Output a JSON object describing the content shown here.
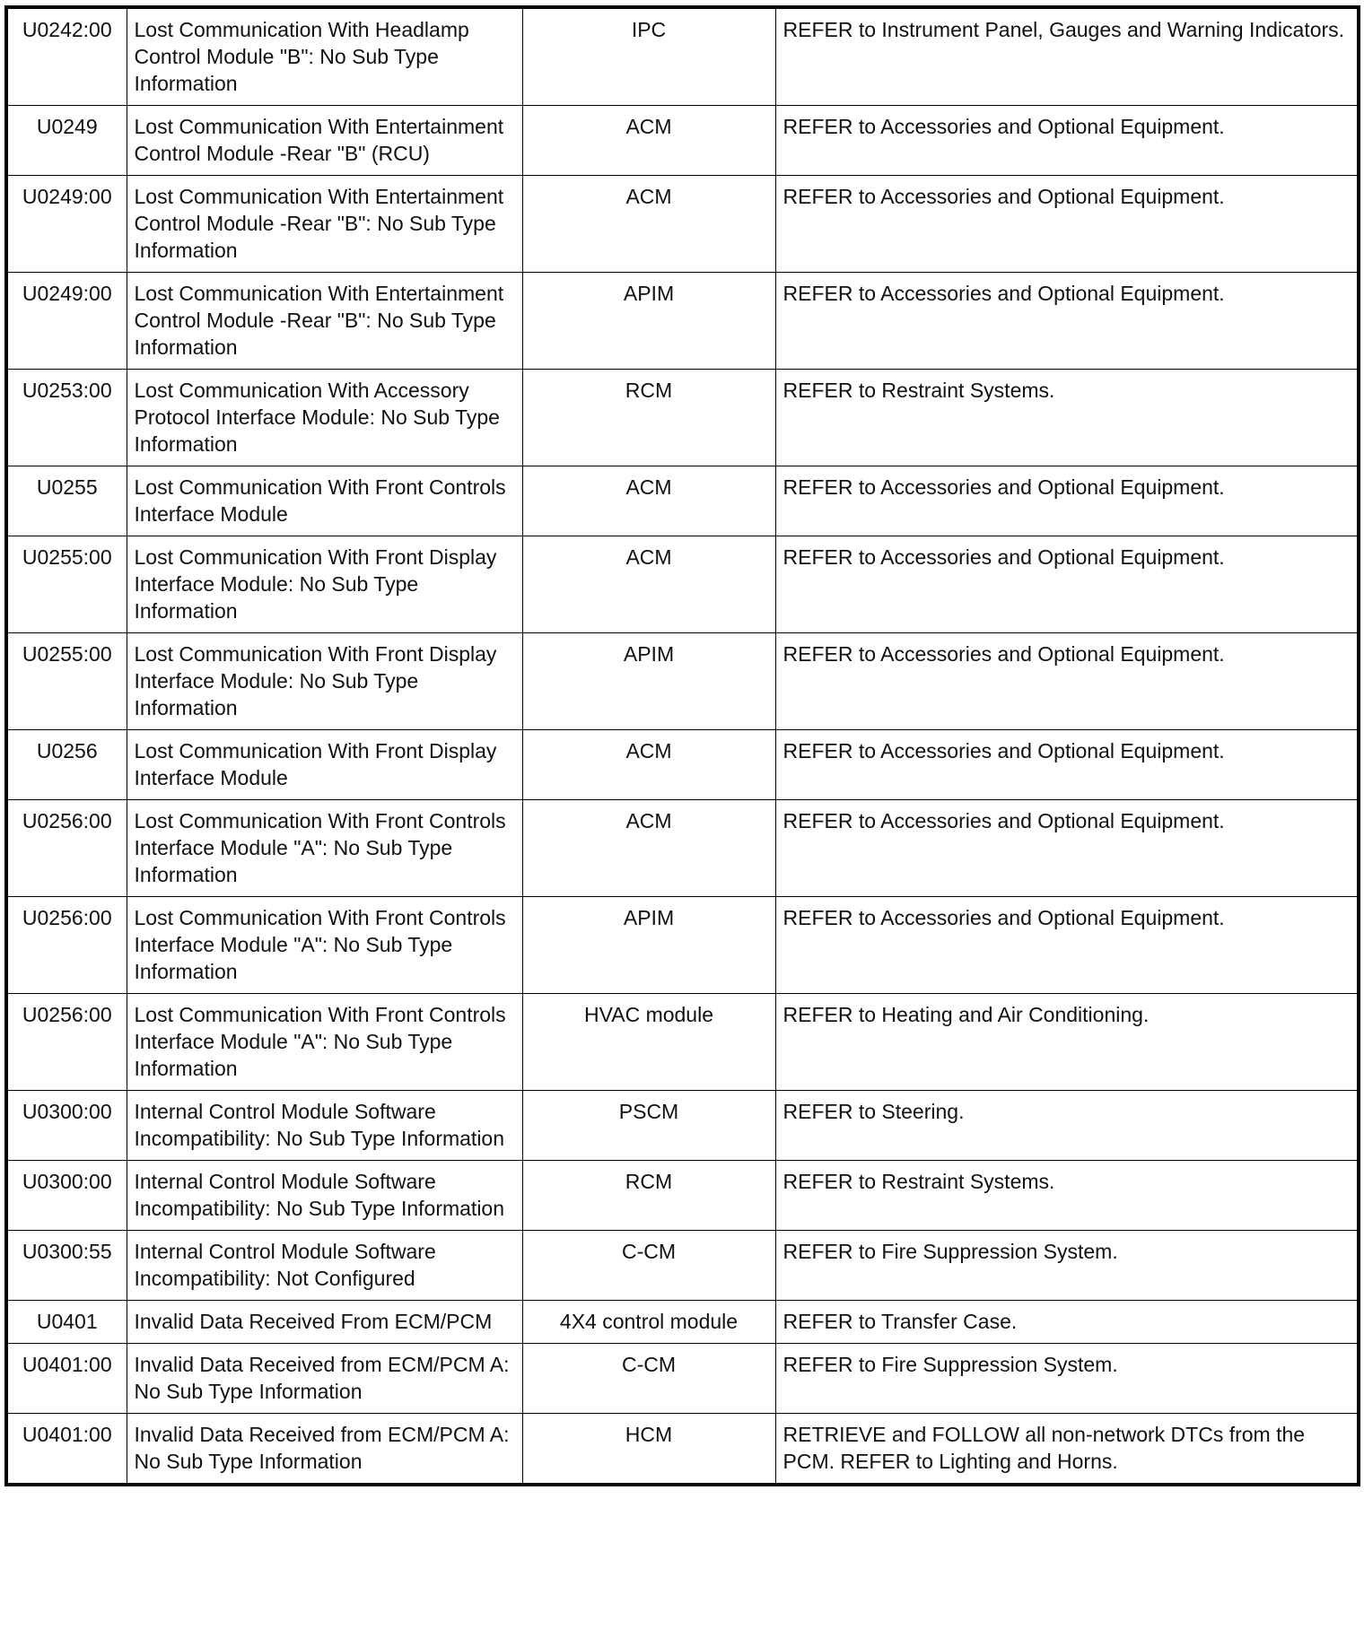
{
  "rows": [
    {
      "code": "U0242:00",
      "description": "Lost Communication With Headlamp Control Module \"B\": No Sub Type Information",
      "module": "IPC",
      "action": "REFER to Instrument Panel, Gauges and Warning Indicators."
    },
    {
      "code": "U0249",
      "description": "Lost Communication With Entertainment Control Module -Rear \"B\" (RCU)",
      "module": "ACM",
      "action": "REFER to Accessories and Optional Equipment."
    },
    {
      "code": "U0249:00",
      "description": "Lost Communication With Entertainment Control Module -Rear \"B\": No Sub Type Information",
      "module": "ACM",
      "action": "REFER to Accessories and Optional Equipment."
    },
    {
      "code": "U0249:00",
      "description": "Lost Communication With Entertainment Control Module -Rear \"B\": No Sub Type Information",
      "module": "APIM",
      "action": "REFER to Accessories and Optional Equipment."
    },
    {
      "code": "U0253:00",
      "description": "Lost Communication With Accessory Protocol Interface Module: No Sub Type Information",
      "module": "RCM",
      "action": "REFER to Restraint Systems."
    },
    {
      "code": "U0255",
      "description": "Lost Communication With Front Controls Interface Module",
      "module": "ACM",
      "action": "REFER to Accessories and Optional Equipment."
    },
    {
      "code": "U0255:00",
      "description": "Lost Communication With Front Display Interface Module: No Sub Type Information",
      "module": "ACM",
      "action": "REFER to Accessories and Optional Equipment."
    },
    {
      "code": "U0255:00",
      "description": "Lost Communication With Front Display Interface Module: No Sub Type Information",
      "module": "APIM",
      "action": "REFER to Accessories and Optional Equipment."
    },
    {
      "code": "U0256",
      "description": "Lost Communication With Front Display Interface Module",
      "module": "ACM",
      "action": "REFER to Accessories and Optional Equipment."
    },
    {
      "code": "U0256:00",
      "description": "Lost Communication With Front Controls Interface Module \"A\": No Sub Type Information",
      "module": "ACM",
      "action": "REFER to Accessories and Optional Equipment."
    },
    {
      "code": "U0256:00",
      "description": "Lost Communication With Front Controls Interface Module \"A\": No Sub Type Information",
      "module": "APIM",
      "action": "REFER to Accessories and Optional Equipment."
    },
    {
      "code": "U0256:00",
      "description": "Lost Communication With Front Controls Interface Module \"A\": No Sub Type Information",
      "module": "HVAC module",
      "action": "REFER to Heating and Air Conditioning."
    },
    {
      "code": "U0300:00",
      "description": "Internal Control Module Software Incompatibility: No Sub Type Information",
      "module": "PSCM",
      "action": "REFER to Steering."
    },
    {
      "code": "U0300:00",
      "description": "Internal Control Module Software Incompatibility: No Sub Type Information",
      "module": "RCM",
      "action": "REFER to Restraint Systems."
    },
    {
      "code": "U0300:55",
      "description": "Internal Control Module Software Incompatibility: Not Configured",
      "module": "C-CM",
      "action": "REFER to Fire Suppression System."
    },
    {
      "code": "U0401",
      "description": "Invalid Data Received From ECM/PCM",
      "module": "4X4 control module",
      "action": "REFER to Transfer Case."
    },
    {
      "code": "U0401:00",
      "description": "Invalid Data Received from ECM/PCM A: No Sub Type Information",
      "module": "C-CM",
      "action": "REFER to Fire Suppression System."
    },
    {
      "code": "U0401:00",
      "description": "Invalid Data Received from ECM/PCM A: No Sub Type Information",
      "module": "HCM",
      "action": "RETRIEVE and FOLLOW all non-network DTCs from the PCM. REFER to Lighting and Horns."
    }
  ]
}
